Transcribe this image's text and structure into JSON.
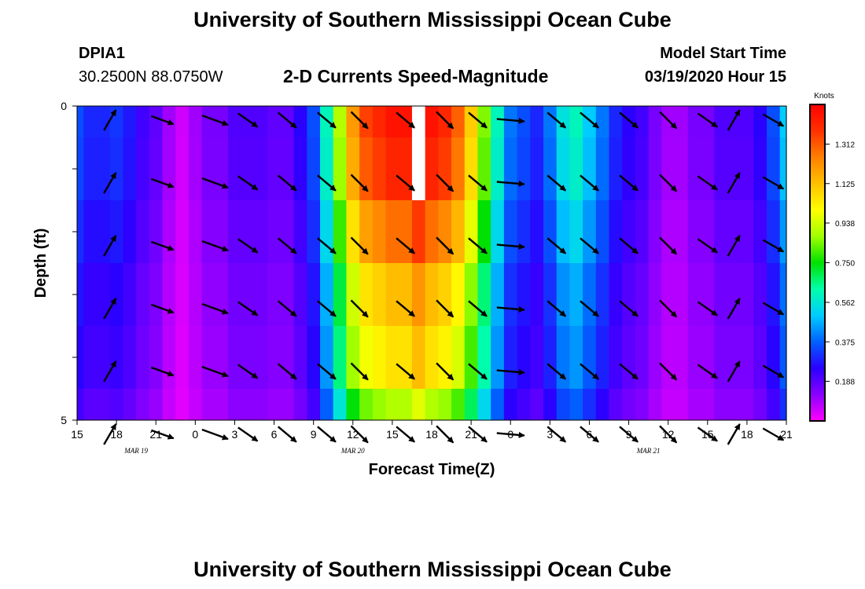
{
  "header": {
    "top_title": "University of Southern Mississippi Ocean Cube",
    "station": "DPIA1",
    "coords": "30.2500N 88.0750W",
    "chart_title": "2-D Currents Speed-Magnitude",
    "model_start_label": "Model Start Time",
    "model_start_value": "03/19/2020 Hour 15",
    "bottom_title": "University of Southern Mississippi Ocean Cube"
  },
  "chart_data": {
    "type": "heatmap",
    "title": "2-D Currents Speed-Magnitude",
    "xlabel": "Forecast Time(Z)",
    "ylabel": "Depth (ft)",
    "x_ticks": [
      "15",
      "18",
      "21",
      "0",
      "3",
      "6",
      "9",
      "12",
      "15",
      "18",
      "21",
      "0",
      "3",
      "6",
      "9",
      "12",
      "15",
      "18",
      "21"
    ],
    "x_range_hours": [
      0,
      54
    ],
    "date_labels": [
      {
        "label": "MAR 19",
        "hour": 4.5
      },
      {
        "label": "MAR 20",
        "hour": 21
      },
      {
        "label": "MAR 21",
        "hour": 43.5
      }
    ],
    "y_tick_labels": [
      {
        "value": 0,
        "label": "0"
      },
      {
        "value": 5,
        "label": "5"
      }
    ],
    "y_range": [
      0,
      5
    ],
    "colorbar": {
      "units": "Knots",
      "labels": [
        "1.312",
        "1.125",
        "0.938",
        "0.750",
        "0.562",
        "0.375",
        "0.188"
      ],
      "label_values": [
        1.312,
        1.125,
        0.938,
        0.75,
        0.562,
        0.375,
        0.188
      ],
      "range": [
        0,
        1.5
      ],
      "colors": [
        "#ff00ff",
        "#8a00ff",
        "#2a00ff",
        "#0060ff",
        "#00ccff",
        "#00ffaa",
        "#00e000",
        "#a0ff00",
        "#ffff00",
        "#ffc000",
        "#ff8000",
        "#ff3000",
        "#ff0000"
      ]
    },
    "depth_layers": [
      {
        "depth_top": 0,
        "depth_bottom": 0.5,
        "scale": 1.0
      },
      {
        "depth_top": 0.5,
        "depth_bottom": 1.5,
        "scale": 0.97
      },
      {
        "depth_top": 1.5,
        "depth_bottom": 2.5,
        "scale": 0.88
      },
      {
        "depth_top": 2.5,
        "depth_bottom": 3.5,
        "scale": 0.78
      },
      {
        "depth_top": 3.5,
        "depth_bottom": 4.5,
        "scale": 0.73
      },
      {
        "depth_top": 4.5,
        "depth_bottom": 5.0,
        "scale": 0.62
      }
    ],
    "surface_speed_by_hour": [
      0.35,
      0.3,
      0.3,
      0.32,
      0.28,
      0.22,
      0.18,
      0.1,
      0.05,
      0.1,
      0.15,
      0.15,
      0.2,
      0.2,
      0.2,
      0.18,
      0.18,
      0.25,
      0.35,
      0.6,
      0.9,
      1.2,
      1.35,
      1.4,
      1.45,
      1.45,
      1.55,
      1.45,
      1.4,
      1.3,
      1.1,
      0.85,
      0.6,
      0.4,
      0.35,
      0.3,
      0.4,
      0.55,
      0.6,
      0.5,
      0.4,
      0.3,
      0.25,
      0.22,
      0.15,
      0.1,
      0.1,
      0.15,
      0.15,
      0.2,
      0.2,
      0.2,
      0.25,
      0.35,
      0.5
    ],
    "arrows": {
      "hours": [
        2.5,
        6.5,
        10.5,
        13,
        16,
        19,
        21.5,
        25,
        28,
        30.5,
        33,
        36.5,
        39,
        42,
        45,
        48,
        50,
        53
      ],
      "depths": [
        0.1,
        1.1,
        2.1,
        3.1,
        4.1,
        5.1
      ],
      "angles_deg": [
        -60,
        20,
        20,
        35,
        40,
        40,
        45,
        40,
        45,
        40,
        5,
        40,
        40,
        40,
        45,
        35,
        -60,
        30
      ],
      "lengths": [
        0.6,
        0.6,
        0.7,
        0.6,
        0.6,
        0.6,
        0.6,
        0.6,
        0.6,
        0.6,
        0.7,
        0.6,
        0.6,
        0.6,
        0.6,
        0.6,
        0.6,
        0.6
      ]
    }
  }
}
